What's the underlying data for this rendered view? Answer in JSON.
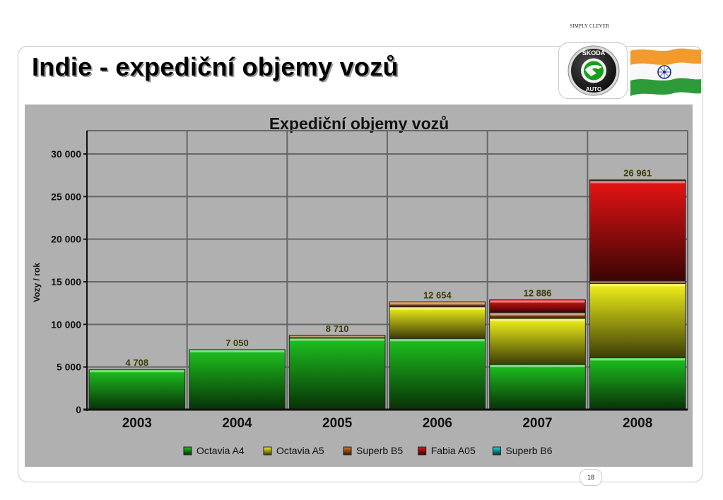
{
  "slide": {
    "tagline": "SIMPLY CLEVER",
    "title": "Indie - expediční objemy vozů",
    "page_number": "18",
    "logo_text": "ŠKODA AUTO"
  },
  "chart_data": {
    "type": "bar",
    "stacked": true,
    "title": "Expediční objemy vozů",
    "ylabel": "Vozy / rok",
    "xlabel": "",
    "ylim": [
      0,
      30000
    ],
    "yticks": [
      0,
      5000,
      10000,
      15000,
      20000,
      25000,
      30000
    ],
    "ytick_labels": [
      "0",
      "5 000",
      "10 000",
      "15 000",
      "20 000",
      "25 000",
      "30 000"
    ],
    "grid": true,
    "legend_position": "bottom",
    "categories": [
      "2003",
      "2004",
      "2005",
      "2006",
      "2007",
      "2008"
    ],
    "totals": [
      4708,
      7050,
      8710,
      12654,
      12886,
      26961
    ],
    "total_labels": [
      "4 708",
      "7 050",
      "8 710",
      "12 654",
      "12 886",
      "26 961"
    ],
    "series": [
      {
        "name": "Octavia A4",
        "color": "#1ec21e",
        "values": [
          4708,
          7050,
          8400,
          8350,
          5300,
          6100
        ]
      },
      {
        "name": "Octavia A5",
        "color": "#f2f21a",
        "values": [
          0,
          0,
          0,
          3700,
          5400,
          8700
        ]
      },
      {
        "name": "Superb B5",
        "color": "#d9761a",
        "values": [
          0,
          0,
          310,
          604,
          686,
          300
        ]
      },
      {
        "name": "Fabia A05",
        "color": "#e81414",
        "values": [
          0,
          0,
          0,
          0,
          1500,
          11800
        ]
      },
      {
        "name": "Superb B6",
        "color": "#19d8e0",
        "values": [
          0,
          0,
          0,
          0,
          0,
          61
        ]
      }
    ]
  }
}
